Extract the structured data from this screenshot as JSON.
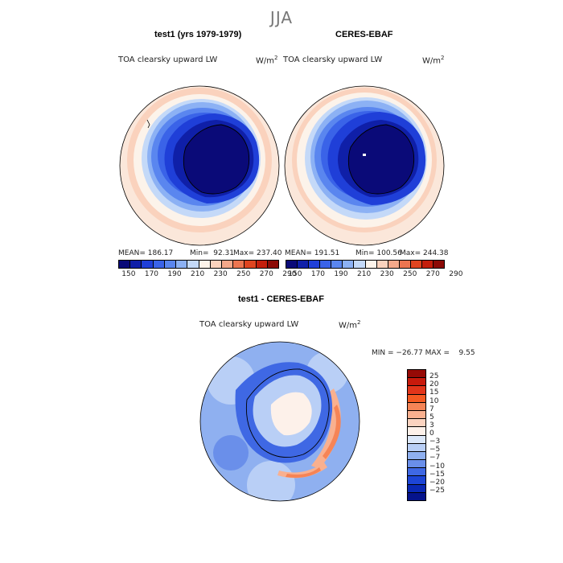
{
  "season": "JJA",
  "panels": [
    {
      "title": "test1 (yrs 1979-1979)",
      "var_label": "TOA clearsky upward LW",
      "units_base": "W/m",
      "units_exp": "2",
      "mean": "MEAN= 186.17",
      "min": "Min=  92.31",
      "max": "Max= 237.40"
    },
    {
      "title": "CERES-EBAF",
      "var_label": "TOA clearsky upward LW",
      "units_base": "W/m",
      "units_exp": "2",
      "mean": "MEAN= 191.51",
      "min": "Min= 100.56",
      "max": "Max= 244.38"
    }
  ],
  "colorbar_top": {
    "colors": [
      "#0a0a78",
      "#0f1fa8",
      "#1f3fd8",
      "#3a63e8",
      "#5a86ef",
      "#8cb1f4",
      "#c4d9f8",
      "#fcf3ea",
      "#fad2bd",
      "#f4a88a",
      "#ec7550",
      "#df4520",
      "#c41e0c",
      "#8c0a06"
    ],
    "tick_labels": [
      "150",
      "170",
      "190",
      "210",
      "230",
      "250",
      "270",
      "290"
    ]
  },
  "diff": {
    "title": "test1 - CERES-EBAF",
    "var_label": "TOA clearsky upward LW",
    "units_base": "W/m",
    "units_exp": "2",
    "stats": "MIN = −26.77 MAX =    9.55",
    "colorbar": {
      "colors": [
        "#960a06",
        "#c81a0c",
        "#e2351a",
        "#f55a22",
        "#f68456",
        "#f9b08f",
        "#fbd3c0",
        "#fdf1ea",
        "#dce8fa",
        "#b9cff6",
        "#8fb0f0",
        "#6a8fea",
        "#3f68e4",
        "#1d45d6",
        "#0a28b4",
        "#05138c"
      ],
      "tick_labels": [
        "25",
        "20",
        "15",
        "10",
        "7",
        "5",
        "3",
        "0",
        "−3",
        "−5",
        "−7",
        "−10",
        "−15",
        "−20",
        "−25"
      ]
    }
  },
  "chart_data": [
    {
      "type": "heatmap",
      "title": "test1 (yrs 1979-1979)",
      "subtitle": "TOA clearsky upward LW",
      "units": "W/m^2",
      "mean": 186.17,
      "min": 92.31,
      "max": 237.4,
      "levels": [
        150,
        170,
        190,
        210,
        230,
        250,
        270,
        290
      ]
    },
    {
      "type": "heatmap",
      "title": "CERES-EBAF",
      "subtitle": "TOA clearsky upward LW",
      "units": "W/m^2",
      "mean": 191.51,
      "min": 100.56,
      "max": 244.38,
      "levels": [
        150,
        170,
        190,
        210,
        230,
        250,
        270,
        290
      ]
    },
    {
      "type": "heatmap",
      "title": "test1 - CERES-EBAF",
      "subtitle": "TOA clearsky upward LW",
      "units": "W/m^2",
      "min": -26.77,
      "max": 9.55,
      "levels": [
        -25,
        -20,
        -15,
        -10,
        -7,
        -5,
        -3,
        0,
        3,
        5,
        7,
        10,
        15,
        20,
        25
      ]
    }
  ]
}
